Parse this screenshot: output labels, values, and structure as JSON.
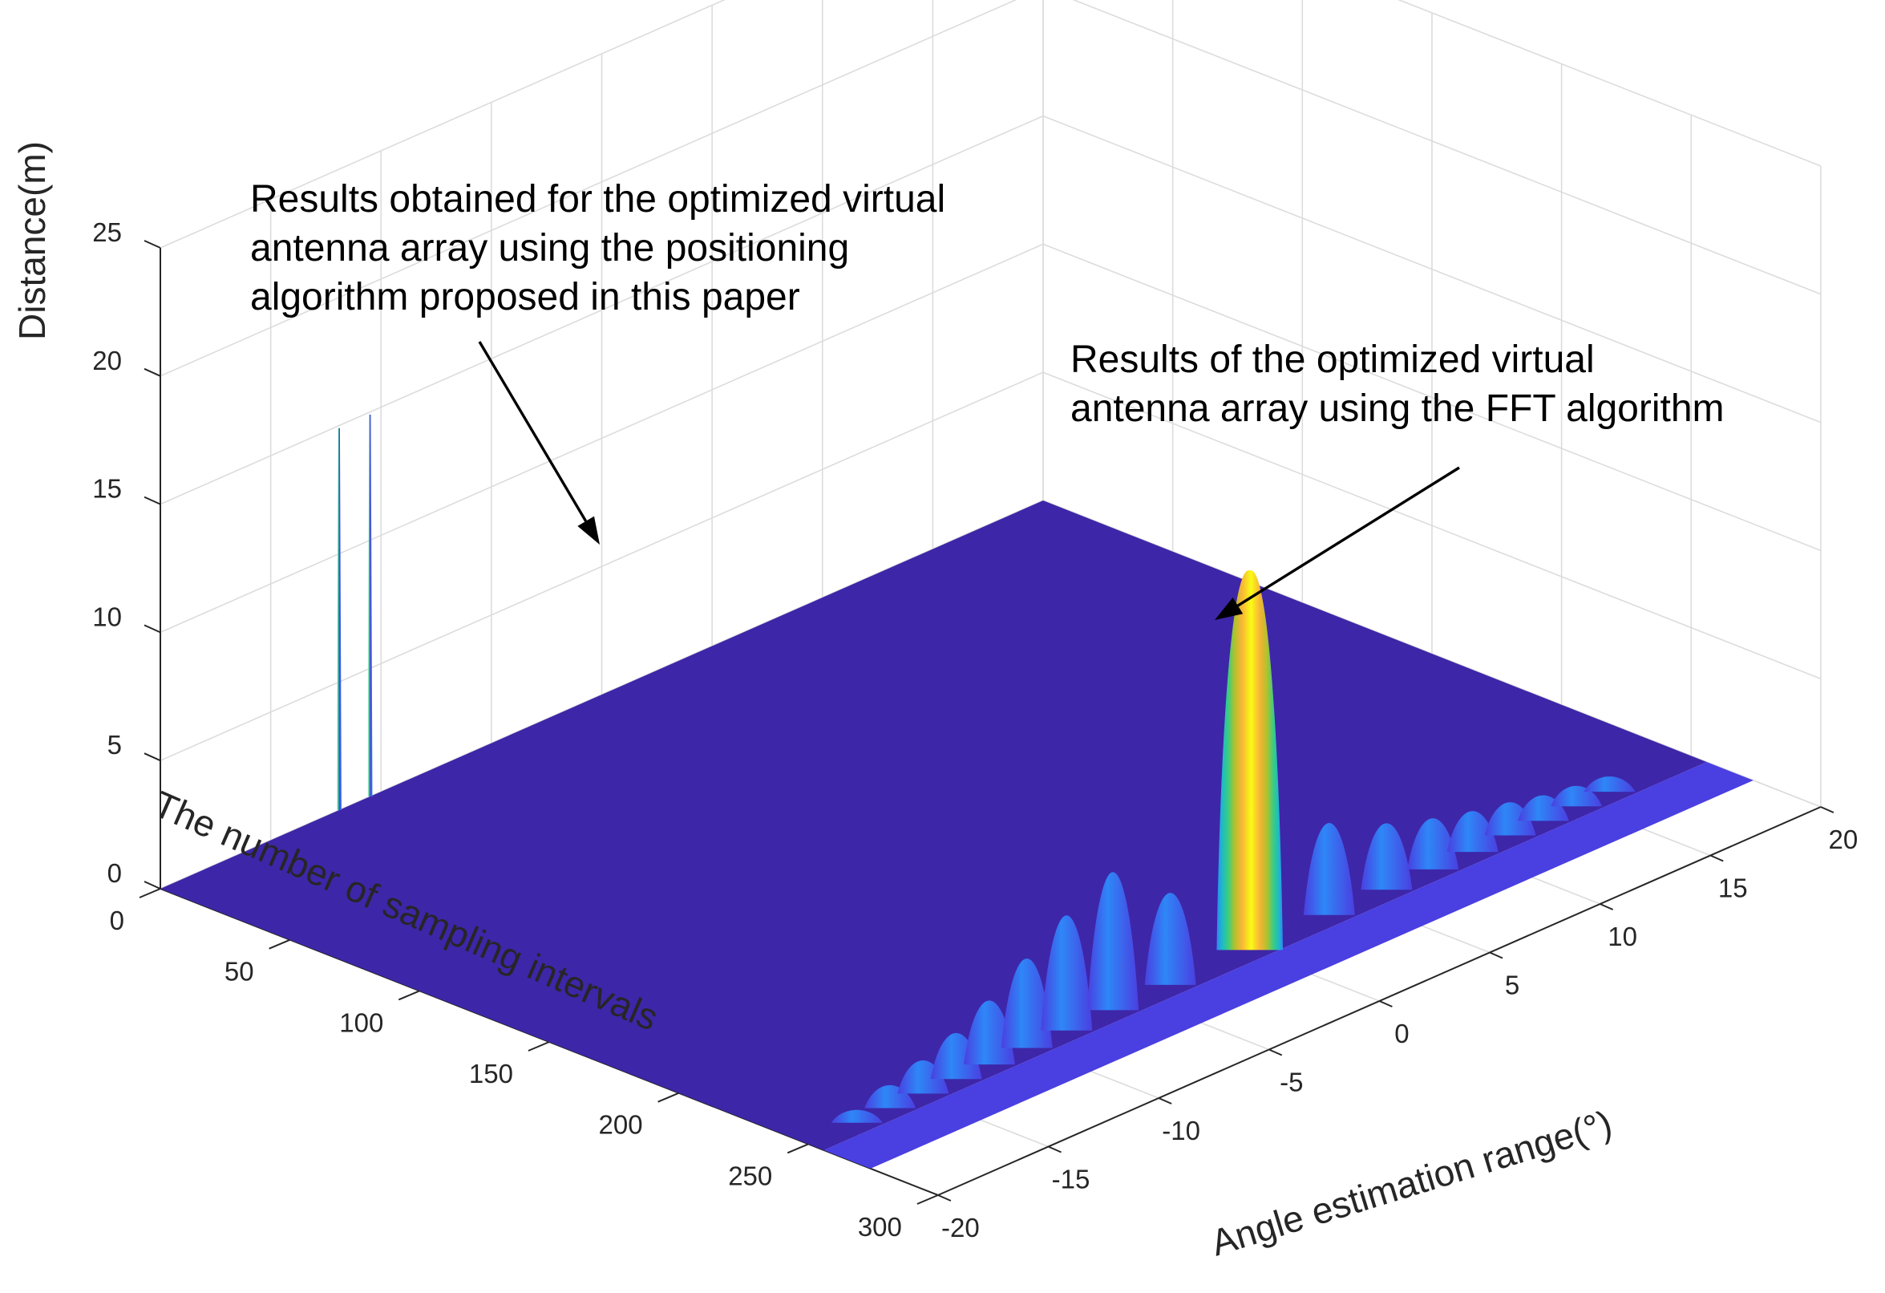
{
  "chart_data": {
    "type": "surface3d",
    "title": "",
    "zlabel": "Distance(m)",
    "xlabel": "The number of sampling intervals",
    "ylabel": "Angle estimation range(°)",
    "zlim": [
      0,
      25
    ],
    "z_ticks": [
      "0",
      "5",
      "10",
      "15",
      "20",
      "25"
    ],
    "sampling_ticks": [
      "0",
      "50",
      "100",
      "150",
      "200",
      "250",
      "300"
    ],
    "angle_ticks": [
      "-20",
      "-15",
      "-10",
      "-5",
      "0",
      "5",
      "10",
      "15",
      "20"
    ],
    "grid": true,
    "colormap": [
      "#3e26a8",
      "#4a3fe1",
      "#2e87f7",
      "#1fb8c8",
      "#36cd86",
      "#b0c22c",
      "#f9b437",
      "#f9fb15"
    ],
    "series": [
      {
        "name": "Results obtained for the optimized virtual antenna array using the positioning algorithm proposed in this paper",
        "peaks": [
          {
            "sampling": 0,
            "angle": -11.9,
            "distance": 14.9
          },
          {
            "sampling": 0,
            "angle": -10.5,
            "distance": 14.9
          }
        ]
      },
      {
        "name": "Results of the optimized virtual antenna array using the FFT algorithm",
        "sampling_row": 250,
        "main_lobe": {
          "angle": 0,
          "distance": 14.8,
          "half_width_deg": 1.5
        },
        "side_lobes": [
          {
            "angle": -17.8,
            "distance": 0.5
          },
          {
            "angle": -16.3,
            "distance": 0.9
          },
          {
            "angle": -14.8,
            "distance": 1.3
          },
          {
            "angle": -13.3,
            "distance": 1.8
          },
          {
            "angle": -11.8,
            "distance": 2.5
          },
          {
            "angle": -10.1,
            "distance": 3.5
          },
          {
            "angle": -8.3,
            "distance": 4.5
          },
          {
            "angle": -6.2,
            "distance": 5.4
          },
          {
            "angle": -3.6,
            "distance": 3.6
          },
          {
            "angle": 3.6,
            "distance": 3.6
          },
          {
            "angle": 6.2,
            "distance": 2.6
          },
          {
            "angle": 8.3,
            "distance": 2.0
          },
          {
            "angle": 10.1,
            "distance": 1.6
          },
          {
            "angle": 11.8,
            "distance": 1.3
          },
          {
            "angle": 13.3,
            "distance": 1.0
          },
          {
            "angle": 14.8,
            "distance": 0.8
          },
          {
            "angle": 16.3,
            "distance": 0.6
          }
        ]
      }
    ],
    "annotations": [
      {
        "lines": [
          "Results obtained for the optimized virtual",
          "antenna array using the positioning",
          "algorithm proposed in this paper"
        ]
      },
      {
        "lines": [
          "Results of the optimized virtual",
          "antenna array using the FFT algorithm"
        ]
      }
    ]
  }
}
